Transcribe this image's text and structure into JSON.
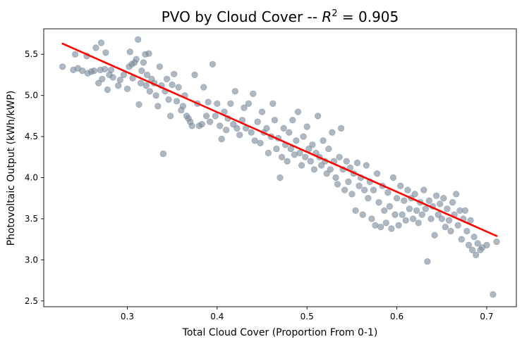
{
  "chart_data": {
    "type": "scatter",
    "title_main": "PVO by Cloud Cover -- ",
    "title_r": "R",
    "title_sup": "2",
    "title_value": " = 0.905",
    "xlabel": "Total Cloud Cover (Proportion From 0-1)",
    "ylabel": "Photovoltaic Output (kWh/kWP)",
    "xlim": [
      0.207,
      0.733
    ],
    "ylim": [
      2.43,
      5.81
    ],
    "xticks": [
      0.3,
      0.4,
      0.5,
      0.6,
      0.7
    ],
    "xtick_labels": [
      "0.3",
      "0.4",
      "0.5",
      "0.6",
      "0.7"
    ],
    "yticks": [
      2.5,
      3.0,
      3.5,
      4.0,
      4.5,
      5.0,
      5.5
    ],
    "ytick_labels": [
      "2.5",
      "3.0",
      "3.5",
      "4.0",
      "4.5",
      "5.0",
      "5.5"
    ],
    "grid": false,
    "legend": "none",
    "point_color": "#778899",
    "line_color": "#ff0000",
    "fit_line": {
      "x": [
        0.228,
        0.711
      ],
      "y": [
        5.63,
        3.29
      ]
    },
    "points": [
      [
        0.228,
        5.35
      ],
      [
        0.24,
        5.31
      ],
      [
        0.242,
        5.5
      ],
      [
        0.245,
        5.33
      ],
      [
        0.25,
        5.3
      ],
      [
        0.255,
        5.48
      ],
      [
        0.256,
        5.27
      ],
      [
        0.26,
        5.29
      ],
      [
        0.263,
        5.3
      ],
      [
        0.265,
        5.58
      ],
      [
        0.268,
        5.15
      ],
      [
        0.27,
        5.31
      ],
      [
        0.271,
        5.64
      ],
      [
        0.272,
        5.2
      ],
      [
        0.275,
        5.32
      ],
      [
        0.276,
        5.52
      ],
      [
        0.278,
        5.07
      ],
      [
        0.28,
        5.25
      ],
      [
        0.282,
        5.31
      ],
      [
        0.284,
        5.22
      ],
      [
        0.29,
        5.12
      ],
      [
        0.292,
        5.19
      ],
      [
        0.296,
        5.25
      ],
      [
        0.3,
        5.08
      ],
      [
        0.302,
        5.35
      ],
      [
        0.303,
        5.53
      ],
      [
        0.305,
        5.38
      ],
      [
        0.306,
        5.21
      ],
      [
        0.308,
        5.4
      ],
      [
        0.31,
        5.44
      ],
      [
        0.312,
        5.68
      ],
      [
        0.313,
        4.89
      ],
      [
        0.315,
        5.15
      ],
      [
        0.316,
        5.3
      ],
      [
        0.318,
        5.4
      ],
      [
        0.32,
        5.5
      ],
      [
        0.321,
        5.12
      ],
      [
        0.322,
        5.25
      ],
      [
        0.324,
        5.51
      ],
      [
        0.325,
        5.05
      ],
      [
        0.327,
        5.2
      ],
      [
        0.33,
        5.15
      ],
      [
        0.332,
        5.0
      ],
      [
        0.334,
        4.87
      ],
      [
        0.336,
        5.35
      ],
      [
        0.338,
        5.12
      ],
      [
        0.34,
        4.29
      ],
      [
        0.342,
        5.05
      ],
      [
        0.344,
        5.2
      ],
      [
        0.346,
        4.95
      ],
      [
        0.348,
        4.75
      ],
      [
        0.35,
        5.13
      ],
      [
        0.352,
        5.26
      ],
      [
        0.355,
        4.93
      ],
      [
        0.357,
        5.1
      ],
      [
        0.36,
        4.82
      ],
      [
        0.362,
        4.87
      ],
      [
        0.364,
        5.0
      ],
      [
        0.366,
        4.75
      ],
      [
        0.368,
        4.72
      ],
      [
        0.37,
        4.68
      ],
      [
        0.372,
        4.63
      ],
      [
        0.375,
        5.25
      ],
      [
        0.378,
        4.9
      ],
      [
        0.38,
        4.63
      ],
      [
        0.383,
        4.65
      ],
      [
        0.385,
        5.1
      ],
      [
        0.388,
        4.75
      ],
      [
        0.39,
        4.92
      ],
      [
        0.392,
        4.68
      ],
      [
        0.395,
        5.38
      ],
      [
        0.398,
        4.75
      ],
      [
        0.4,
        4.9
      ],
      [
        0.403,
        4.63
      ],
      [
        0.405,
        4.47
      ],
      [
        0.408,
        4.8
      ],
      [
        0.41,
        4.58
      ],
      [
        0.412,
        4.72
      ],
      [
        0.415,
        4.9
      ],
      [
        0.418,
        4.65
      ],
      [
        0.42,
        5.05
      ],
      [
        0.422,
        4.6
      ],
      [
        0.425,
        4.52
      ],
      [
        0.428,
        4.7
      ],
      [
        0.43,
        4.85
      ],
      [
        0.432,
        4.6
      ],
      [
        0.435,
        4.9
      ],
      [
        0.438,
        4.55
      ],
      [
        0.44,
        5.02
      ],
      [
        0.442,
        4.45
      ],
      [
        0.445,
        4.68
      ],
      [
        0.448,
        4.42
      ],
      [
        0.45,
        4.8
      ],
      [
        0.452,
        4.55
      ],
      [
        0.455,
        4.6
      ],
      [
        0.457,
        4.3
      ],
      [
        0.46,
        4.5
      ],
      [
        0.462,
        4.9
      ],
      [
        0.464,
        4.7
      ],
      [
        0.466,
        4.35
      ],
      [
        0.468,
        4.48
      ],
      [
        0.47,
        4.0
      ],
      [
        0.472,
        4.25
      ],
      [
        0.474,
        4.6
      ],
      [
        0.476,
        4.4
      ],
      [
        0.478,
        4.2
      ],
      [
        0.48,
        4.55
      ],
      [
        0.482,
        4.35
      ],
      [
        0.484,
        4.7
      ],
      [
        0.486,
        4.28
      ],
      [
        0.488,
        4.45
      ],
      [
        0.49,
        4.8
      ],
      [
        0.492,
        4.3
      ],
      [
        0.494,
        4.15
      ],
      [
        0.496,
        4.5
      ],
      [
        0.498,
        4.25
      ],
      [
        0.5,
        4.62
      ],
      [
        0.502,
        4.35
      ],
      [
        0.504,
        4.2
      ],
      [
        0.506,
        4.4
      ],
      [
        0.508,
        4.1
      ],
      [
        0.51,
        4.3
      ],
      [
        0.512,
        4.75
      ],
      [
        0.514,
        4.25
      ],
      [
        0.516,
        4.15
      ],
      [
        0.518,
        4.45
      ],
      [
        0.52,
        4.2
      ],
      [
        0.522,
        4.05
      ],
      [
        0.524,
        4.35
      ],
      [
        0.526,
        4.1
      ],
      [
        0.528,
        4.55
      ],
      [
        0.53,
        4.2
      ],
      [
        0.532,
        4.0
      ],
      [
        0.534,
        3.92
      ],
      [
        0.536,
        4.25
      ],
      [
        0.538,
        4.6
      ],
      [
        0.54,
        4.1
      ],
      [
        0.542,
        3.85
      ],
      [
        0.544,
        4.2
      ],
      [
        0.546,
        3.95
      ],
      [
        0.548,
        4.12
      ],
      [
        0.55,
        3.8
      ],
      [
        0.552,
        4.05
      ],
      [
        0.554,
        3.6
      ],
      [
        0.556,
        4.18
      ],
      [
        0.558,
        3.9
      ],
      [
        0.56,
        4.0
      ],
      [
        0.562,
        3.55
      ],
      [
        0.564,
        3.85
      ],
      [
        0.566,
        4.15
      ],
      [
        0.568,
        3.75
      ],
      [
        0.57,
        3.95
      ],
      [
        0.572,
        3.5
      ],
      [
        0.574,
        3.85
      ],
      [
        0.576,
        3.42
      ],
      [
        0.578,
        4.05
      ],
      [
        0.58,
        3.7
      ],
      [
        0.582,
        3.4
      ],
      [
        0.584,
        3.9
      ],
      [
        0.586,
        3.6
      ],
      [
        0.588,
        3.45
      ],
      [
        0.59,
        3.82
      ],
      [
        0.592,
        3.65
      ],
      [
        0.594,
        3.38
      ],
      [
        0.596,
        4.0
      ],
      [
        0.598,
        3.55
      ],
      [
        0.6,
        3.75
      ],
      [
        0.602,
        3.42
      ],
      [
        0.604,
        3.9
      ],
      [
        0.606,
        3.55
      ],
      [
        0.608,
        3.72
      ],
      [
        0.61,
        3.48
      ],
      [
        0.612,
        3.85
      ],
      [
        0.614,
        3.62
      ],
      [
        0.616,
        3.75
      ],
      [
        0.618,
        3.5
      ],
      [
        0.62,
        3.8
      ],
      [
        0.622,
        3.6
      ],
      [
        0.624,
        3.45
      ],
      [
        0.626,
        3.7
      ],
      [
        0.628,
        3.55
      ],
      [
        0.63,
        3.85
      ],
      [
        0.632,
        3.62
      ],
      [
        0.634,
        2.98
      ],
      [
        0.636,
        3.72
      ],
      [
        0.638,
        3.5
      ],
      [
        0.64,
        3.65
      ],
      [
        0.642,
        3.3
      ],
      [
        0.644,
        3.78
      ],
      [
        0.646,
        3.55
      ],
      [
        0.648,
        3.68
      ],
      [
        0.65,
        3.5
      ],
      [
        0.652,
        3.75
      ],
      [
        0.654,
        3.4
      ],
      [
        0.656,
        3.62
      ],
      [
        0.658,
        3.48
      ],
      [
        0.66,
        3.35
      ],
      [
        0.662,
        3.7
      ],
      [
        0.664,
        3.55
      ],
      [
        0.666,
        3.8
      ],
      [
        0.668,
        3.42
      ],
      [
        0.67,
        3.6
      ],
      [
        0.672,
        3.25
      ],
      [
        0.674,
        3.5
      ],
      [
        0.676,
        3.6
      ],
      [
        0.678,
        3.35
      ],
      [
        0.68,
        3.18
      ],
      [
        0.682,
        3.48
      ],
      [
        0.684,
        3.12
      ],
      [
        0.686,
        3.28
      ],
      [
        0.688,
        3.06
      ],
      [
        0.69,
        3.2
      ],
      [
        0.693,
        3.12
      ],
      [
        0.695,
        3.15
      ],
      [
        0.7,
        3.18
      ],
      [
        0.707,
        2.58
      ],
      [
        0.711,
        3.22
      ]
    ]
  }
}
